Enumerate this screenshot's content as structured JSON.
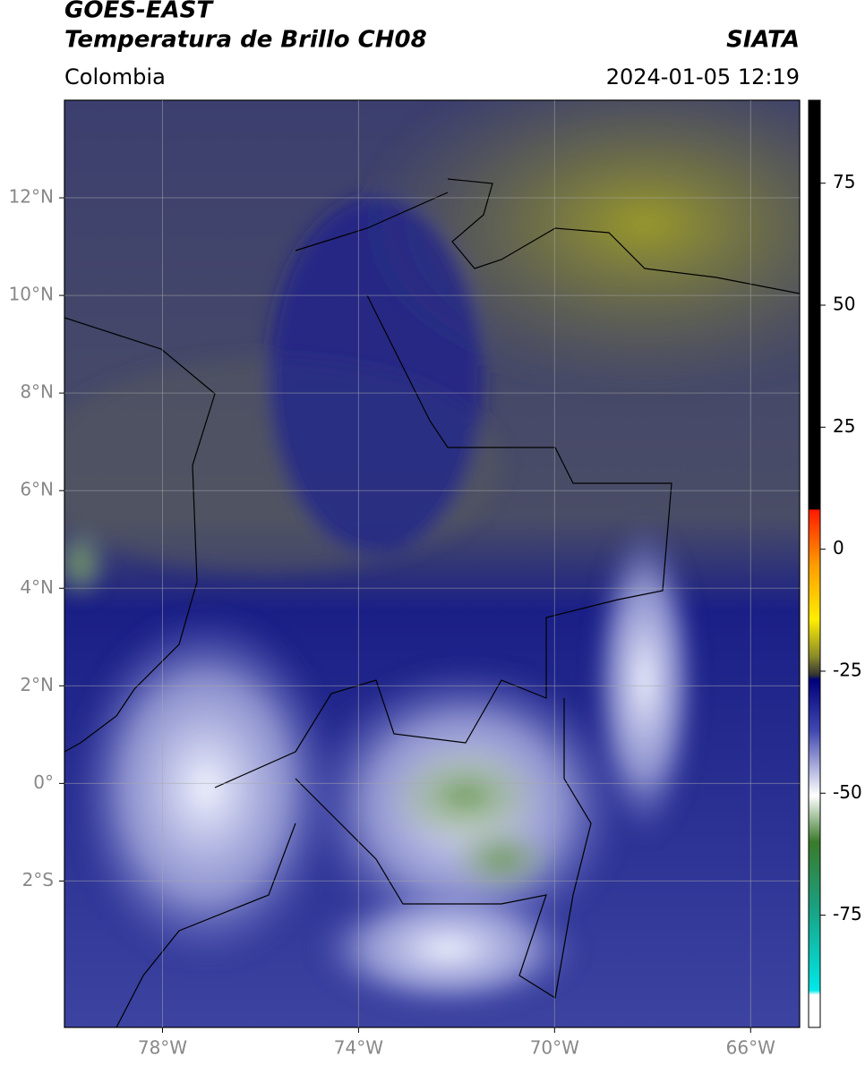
{
  "header": {
    "title": "GOES-EAST",
    "subtitle": "Temperatura de Brillo CH08",
    "region": "Colombia",
    "source": "SIATA",
    "datetime": "2024-01-05 12:19"
  },
  "map": {
    "lonlim": [
      -80,
      -65
    ],
    "latlim": [
      -5,
      14
    ],
    "lon_ticks": [
      {
        "value": -78,
        "label": "78°W"
      },
      {
        "value": -74,
        "label": "74°W"
      },
      {
        "value": -70,
        "label": "70°W"
      },
      {
        "value": -66,
        "label": "66°W"
      }
    ],
    "lat_ticks": [
      {
        "value": 12,
        "label": "12°N"
      },
      {
        "value": 10,
        "label": "10°N"
      },
      {
        "value": 8,
        "label": "8°N"
      },
      {
        "value": 6,
        "label": "6°N"
      },
      {
        "value": 4,
        "label": "4°N"
      },
      {
        "value": 2,
        "label": "2°N"
      },
      {
        "value": 0,
        "label": "0°"
      },
      {
        "value": -2,
        "label": "2°S"
      }
    ],
    "grid": true
  },
  "colorbar": {
    "clim": [
      -98,
      92
    ],
    "ticks": [
      75,
      50,
      25,
      0,
      -25,
      -50,
      -75
    ]
  }
}
